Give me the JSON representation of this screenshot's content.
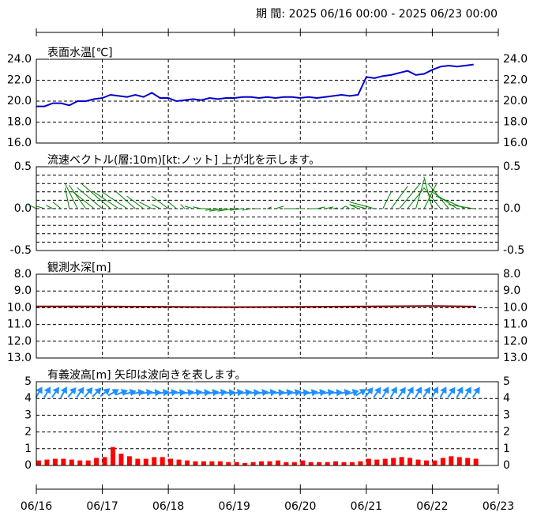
{
  "header": "期 間: 2025 06/16 00:00 - 2025 06/23 00:00",
  "chart_data": [
    {
      "type": "line",
      "title": "表面水温[℃]",
      "color": "#0000cc",
      "ylim": [
        16,
        24
      ],
      "yticks": [
        {
          "value": 16,
          "label": "16.0"
        },
        {
          "value": 18,
          "label": "18.0"
        },
        {
          "value": 20,
          "label": "20.0"
        },
        {
          "value": 22,
          "label": "22.0"
        },
        {
          "value": 24,
          "label": "24.0"
        }
      ],
      "x": [
        0,
        0.125,
        0.25,
        0.375,
        0.5,
        0.625,
        0.75,
        0.875,
        1,
        1.125,
        1.25,
        1.375,
        1.5,
        1.625,
        1.75,
        1.875,
        2,
        2.125,
        2.25,
        2.375,
        2.5,
        2.625,
        2.75,
        2.875,
        3,
        3.125,
        3.25,
        3.375,
        3.5,
        3.625,
        3.75,
        3.875,
        4,
        4.125,
        4.25,
        4.375,
        4.5,
        4.625,
        4.75,
        4.875,
        5,
        5.125,
        5.25,
        5.375,
        5.5,
        5.625,
        5.75,
        5.875,
        6,
        6.125,
        6.25,
        6.375,
        6.5,
        6.625
      ],
      "values": [
        19.5,
        19.5,
        19.8,
        19.8,
        19.6,
        20.0,
        20.0,
        20.2,
        20.3,
        20.6,
        20.5,
        20.4,
        20.6,
        20.4,
        20.8,
        20.3,
        20.3,
        20.0,
        20.1,
        20.2,
        20.1,
        20.3,
        20.2,
        20.3,
        20.3,
        20.4,
        20.4,
        20.3,
        20.4,
        20.3,
        20.4,
        20.4,
        20.3,
        20.4,
        20.3,
        20.4,
        20.5,
        20.6,
        20.5,
        20.6,
        22.3,
        22.2,
        22.4,
        22.5,
        22.7,
        22.9,
        22.5,
        22.6,
        23.0,
        23.3,
        23.4,
        23.3,
        23.4,
        23.5
      ]
    },
    {
      "type": "vector",
      "title": "流速ベクトル(層:10m)[kt:ノット] 上が北を示します。",
      "color": "#008000",
      "ylim": [
        -0.5,
        0.5
      ],
      "yticks": [
        -0.5,
        {
          "value": 0,
          "label": "0.0"
        },
        0.5
      ],
      "yminor": [
        -0.4,
        -0.3,
        -0.2,
        -0.1,
        0.1,
        0.2,
        0.3,
        0.4
      ],
      "x": [
        0,
        0.125,
        0.25,
        0.375,
        0.5,
        0.625,
        0.75,
        0.875,
        1,
        1.125,
        1.25,
        1.375,
        1.5,
        1.625,
        1.75,
        1.875,
        2,
        2.125,
        2.25,
        2.375,
        2.5,
        2.625,
        2.75,
        2.875,
        3,
        3.125,
        3.25,
        3.375,
        3.5,
        3.625,
        3.75,
        3.875,
        4,
        4.125,
        4.25,
        4.375,
        4.5,
        4.625,
        4.75,
        4.875,
        5,
        5.125,
        5.25,
        5.375,
        5.5,
        5.625,
        5.75,
        5.875,
        6,
        6.125,
        6.25,
        6.375,
        6.5,
        6.625
      ],
      "u": [
        -0.1,
        -0.1,
        -0.08,
        -0.1,
        -0.05,
        -0.15,
        -0.2,
        -0.25,
        -0.3,
        -0.35,
        -0.3,
        -0.3,
        -0.25,
        -0.2,
        -0.15,
        -0.1,
        -0.2,
        -0.1,
        -0.05,
        -0.1,
        -0.1,
        -0.15,
        -0.15,
        -0.2,
        -0.2,
        -0.15,
        -0.1,
        -0.05,
        0.05,
        0.1,
        0.1,
        0.05,
        0.05,
        0.1,
        0.1,
        0.1,
        0.05,
        0.05,
        -0.05,
        -0.1,
        -0.2,
        -0.3,
        0.1,
        0.2,
        0.25,
        0.2,
        0.1,
        0.15,
        -0.1,
        -0.2,
        -0.25,
        -0.3,
        -0.35,
        -0.3
      ],
      "v": [
        0.05,
        0.03,
        0.04,
        0.08,
        0.25,
        0.3,
        0.28,
        0.2,
        0.25,
        0.3,
        0.2,
        0.2,
        0.22,
        0.15,
        0.08,
        0.05,
        0.15,
        0.08,
        0.05,
        0.03,
        0.02,
        0,
        -0.02,
        -0.03,
        -0.03,
        -0.02,
        -0.02,
        0,
        0.02,
        0.03,
        0,
        0,
        0,
        0,
        0.02,
        0.02,
        0.01,
        0.03,
        0.03,
        0.05,
        0.05,
        0.08,
        0.2,
        0.27,
        0.3,
        0.25,
        0.35,
        0.3,
        0.38,
        0.25,
        0.3,
        0.2,
        0.15,
        0.05
      ]
    },
    {
      "type": "line",
      "title": "観測水深[m]",
      "color": "#800000",
      "ylim": [
        13,
        8
      ],
      "yticks": [
        {
          "value": 8,
          "label": "8.0"
        },
        {
          "value": 9,
          "label": "9.0"
        },
        {
          "value": 10,
          "label": "10.0"
        },
        {
          "value": 11,
          "label": "11.0"
        },
        {
          "value": 12,
          "label": "12.0"
        },
        {
          "value": 13,
          "label": "13.0"
        }
      ],
      "x": [
        0,
        1,
        2,
        3,
        4,
        5,
        6,
        6.66
      ],
      "values": [
        9.92,
        9.92,
        9.95,
        9.96,
        9.95,
        9.92,
        9.9,
        9.93
      ]
    },
    {
      "type": "bar",
      "title": "有義波高[m] 矢印は波向きを表します。",
      "color": "#ff0000",
      "arrow_color": "#1e90ff",
      "ylim": [
        0,
        5
      ],
      "yticks": [
        0,
        1,
        2,
        3,
        4,
        5
      ],
      "xlim": [
        0,
        7
      ],
      "xticks": [
        {
          "value": 0,
          "label": "06/16"
        },
        {
          "value": 1,
          "label": "06/17"
        },
        {
          "value": 2,
          "label": "06/18"
        },
        {
          "value": 3,
          "label": "06/19"
        },
        {
          "value": 4,
          "label": "06/20"
        },
        {
          "value": 5,
          "label": "06/21"
        },
        {
          "value": 6,
          "label": "06/22"
        },
        {
          "value": 7,
          "label": "06/23"
        }
      ],
      "x": [
        0,
        0.125,
        0.25,
        0.375,
        0.5,
        0.625,
        0.75,
        0.875,
        1,
        1.125,
        1.25,
        1.375,
        1.5,
        1.625,
        1.75,
        1.875,
        2,
        2.125,
        2.25,
        2.375,
        2.5,
        2.625,
        2.75,
        2.875,
        3,
        3.125,
        3.25,
        3.375,
        3.5,
        3.625,
        3.75,
        3.875,
        4,
        4.125,
        4.25,
        4.375,
        4.5,
        4.625,
        4.75,
        4.875,
        5,
        5.125,
        5.25,
        5.375,
        5.5,
        5.625,
        5.75,
        5.875,
        6,
        6.125,
        6.25,
        6.375,
        6.5,
        6.625
      ],
      "values": [
        0.3,
        0.35,
        0.4,
        0.4,
        0.35,
        0.3,
        0.3,
        0.45,
        0.5,
        1.1,
        0.7,
        0.55,
        0.4,
        0.4,
        0.5,
        0.5,
        0.4,
        0.35,
        0.3,
        0.25,
        0.25,
        0.25,
        0.25,
        0.2,
        0.2,
        0.15,
        0.2,
        0.25,
        0.25,
        0.3,
        0.2,
        0.2,
        0.3,
        0.2,
        0.2,
        0.2,
        0.25,
        0.2,
        0.2,
        0.25,
        0.4,
        0.35,
        0.4,
        0.45,
        0.5,
        0.45,
        0.35,
        0.3,
        0.3,
        0.45,
        0.55,
        0.5,
        0.45,
        0.4
      ],
      "direction": [
        30,
        30,
        35,
        30,
        40,
        35,
        40,
        45,
        50,
        60,
        70,
        75,
        80,
        80,
        85,
        80,
        80,
        85,
        80,
        80,
        85,
        80,
        80,
        85,
        80,
        80,
        85,
        80,
        80,
        85,
        80,
        80,
        85,
        80,
        80,
        80,
        85,
        80,
        75,
        60,
        40,
        35,
        30,
        30,
        35,
        30,
        30,
        35,
        30,
        30,
        35,
        30,
        30,
        35
      ]
    }
  ]
}
